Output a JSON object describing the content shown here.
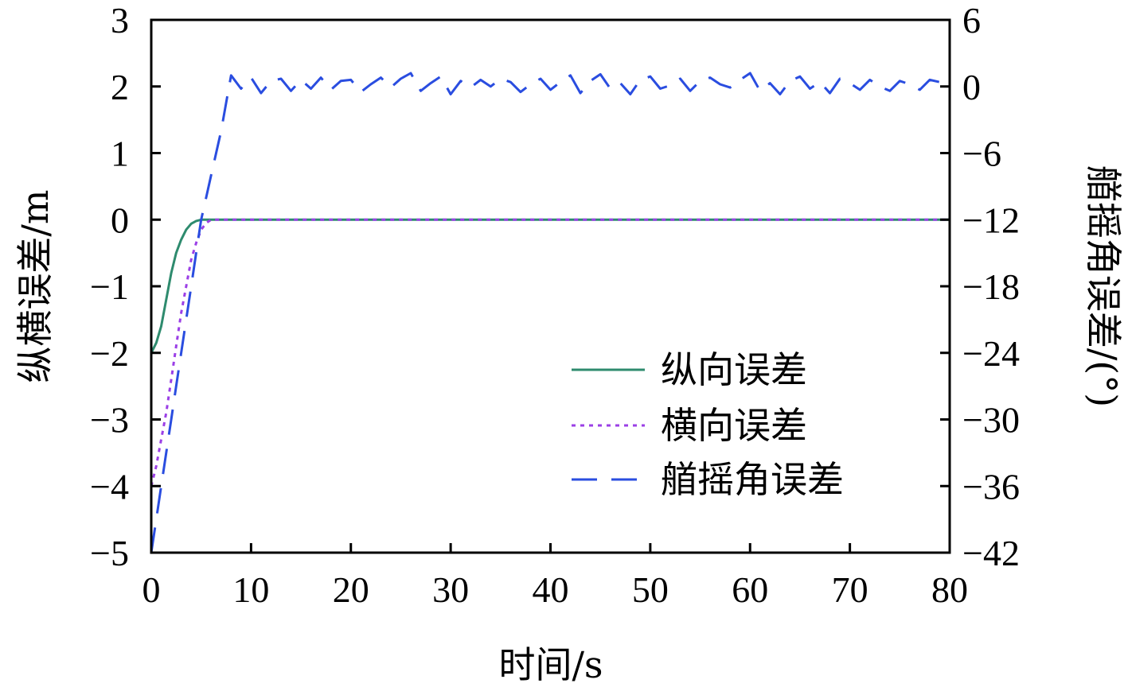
{
  "chart_data": {
    "type": "line",
    "xlabel": "时间/s",
    "ylabel": "纵横误差/m",
    "y2label": "艏摇角误差/(°)",
    "xlim": [
      0,
      80
    ],
    "ylim": [
      -5,
      3
    ],
    "y2lim": [
      -42,
      6
    ],
    "xticks": [
      0,
      10,
      20,
      30,
      40,
      50,
      60,
      70,
      80
    ],
    "yticks": [
      -5,
      -4,
      -3,
      -2,
      -1,
      0,
      1,
      2,
      3
    ],
    "y2ticks": [
      -42,
      -36,
      -30,
      -24,
      -18,
      -12,
      -6,
      0,
      6
    ],
    "ytick_labels": [
      "−5",
      "−4",
      "−3",
      "−2",
      "−1",
      "0",
      "1",
      "2",
      "3"
    ],
    "y2tick_labels": [
      "−42",
      "−36",
      "−30",
      "−24",
      "−18",
      "−12",
      "−6",
      "0",
      "6"
    ],
    "xtick_labels": [
      "0",
      "10",
      "20",
      "30",
      "40",
      "50",
      "60",
      "70",
      "80"
    ],
    "grid": false,
    "legend_position": "bottom-right",
    "series": [
      {
        "name": "纵向误差",
        "axis": "left",
        "color": "#2e8b6e",
        "style": "solid",
        "x": [
          0,
          0.5,
          1,
          1.5,
          2,
          2.5,
          3,
          3.5,
          4,
          4.5,
          5,
          6,
          80
        ],
        "y": [
          -2.0,
          -1.85,
          -1.6,
          -1.2,
          -0.8,
          -0.5,
          -0.3,
          -0.15,
          -0.06,
          -0.02,
          0,
          0,
          0
        ]
      },
      {
        "name": "横向误差",
        "axis": "left",
        "color": "#9b3fe6",
        "style": "dotted",
        "x": [
          0,
          0.5,
          1,
          1.5,
          2,
          2.5,
          3,
          3.5,
          4,
          4.5,
          5,
          5.5,
          6,
          80
        ],
        "y": [
          -4.0,
          -3.7,
          -3.3,
          -2.9,
          -2.4,
          -1.9,
          -1.4,
          -1.0,
          -0.6,
          -0.35,
          -0.15,
          -0.05,
          0,
          0
        ]
      },
      {
        "name": "艏摇角误差",
        "axis": "right",
        "color": "#2a4de0",
        "style": "dashed",
        "x": [
          0,
          0.5,
          1,
          1.5,
          2,
          2.5,
          3,
          3.5,
          4,
          4.5,
          5,
          5.5,
          6,
          6.5,
          7,
          7.5,
          8,
          9,
          10,
          11,
          12,
          13,
          14,
          15,
          16,
          17,
          18,
          19,
          20,
          21,
          22,
          23,
          24,
          25,
          26,
          27,
          28,
          29,
          30,
          31,
          32,
          33,
          34,
          35,
          36,
          37,
          38,
          39,
          40,
          41,
          42,
          43,
          44,
          45,
          46,
          47,
          48,
          49,
          50,
          51,
          52,
          53,
          54,
          55,
          56,
          57,
          58,
          59,
          60,
          61,
          62,
          63,
          64,
          65,
          66,
          67,
          68,
          69,
          70,
          71,
          72,
          73,
          74,
          75,
          76,
          77,
          78,
          79,
          80
        ],
        "y": [
          -42,
          -39,
          -36,
          -33,
          -30,
          -27,
          -24,
          -21,
          -18,
          -15,
          -12,
          -10,
          -8,
          -6,
          -4,
          -1.5,
          1.0,
          -0.2,
          0.8,
          -0.6,
          0.5,
          0.7,
          -0.4,
          0.6,
          -0.2,
          0.8,
          -0.3,
          0.5,
          0.6,
          -0.5,
          0.2,
          0.8,
          -0.1,
          0.7,
          1.2,
          -0.4,
          0.3,
          0.9,
          -0.7,
          0.5,
          -0.1,
          0.6,
          0.0,
          0.7,
          0.4,
          -0.5,
          0.2,
          0.7,
          -0.3,
          0.4,
          1.0,
          -0.6,
          0.5,
          1.1,
          -0.2,
          0.3,
          -0.7,
          0.6,
          0.9,
          -0.2,
          0.1,
          0.7,
          -0.4,
          0.5,
          0.8,
          0.2,
          -0.1,
          0.6,
          1.2,
          -0.4,
          0.3,
          -0.7,
          0.5,
          0.9,
          -0.2,
          0.4,
          -0.6,
          0.7,
          0.3,
          -0.3,
          0.6,
          0.0,
          -0.4,
          0.5,
          0.2,
          -0.3,
          0.6,
          0.4,
          0.5
        ]
      }
    ]
  }
}
